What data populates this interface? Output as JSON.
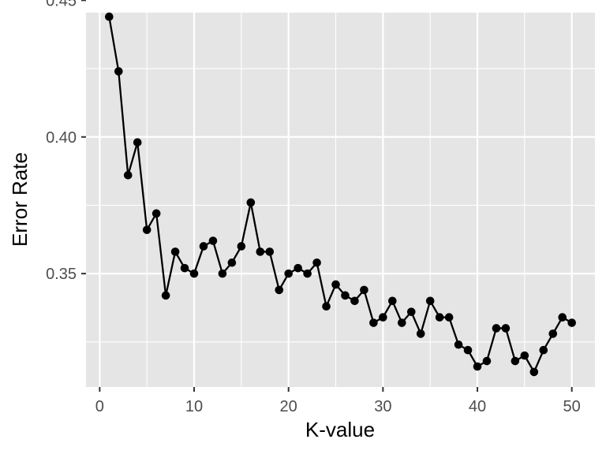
{
  "colors": {
    "panel_background": "#e5e5e5",
    "grid_line": "#ffffff",
    "series_color": "#000000",
    "tick_label": "#4d4d4d",
    "tick_mark": "#333333"
  },
  "chart_data": {
    "type": "line",
    "xlabel": "K-value",
    "ylabel": "Error Rate",
    "xlim": [
      -1.45,
      52.45
    ],
    "ylim": [
      0.3085,
      0.4455
    ],
    "x_ticks": [
      0,
      10,
      20,
      30,
      40,
      50
    ],
    "x_tick_labels": [
      "0",
      "10",
      "20",
      "30",
      "40",
      "50"
    ],
    "y_ticks": [
      0.35,
      0.4,
      0.45
    ],
    "y_tick_labels": [
      "0.35",
      "0.40",
      "0.45"
    ],
    "grid": true,
    "legend": "none",
    "markers": true,
    "series": [
      {
        "x": [
          1,
          2,
          3,
          4,
          5,
          6,
          7,
          8,
          9,
          10,
          11,
          12,
          13,
          14,
          15,
          16,
          17,
          18,
          19,
          20,
          21,
          22,
          23,
          24,
          25,
          26,
          27,
          28,
          29,
          30,
          31,
          32,
          33,
          34,
          35,
          36,
          37,
          38,
          39,
          40,
          41,
          42,
          43,
          44,
          45,
          46,
          47,
          48,
          49,
          50
        ],
        "values": [
          0.444,
          0.424,
          0.386,
          0.398,
          0.366,
          0.372,
          0.342,
          0.358,
          0.352,
          0.35,
          0.36,
          0.362,
          0.35,
          0.354,
          0.36,
          0.376,
          0.358,
          0.358,
          0.344,
          0.35,
          0.352,
          0.35,
          0.354,
          0.338,
          0.346,
          0.342,
          0.34,
          0.344,
          0.332,
          0.334,
          0.34,
          0.332,
          0.336,
          0.328,
          0.34,
          0.334,
          0.334,
          0.324,
          0.322,
          0.316,
          0.318,
          0.33,
          0.33,
          0.318,
          0.32,
          0.314,
          0.322,
          0.328,
          0.334,
          0.332
        ]
      }
    ]
  }
}
